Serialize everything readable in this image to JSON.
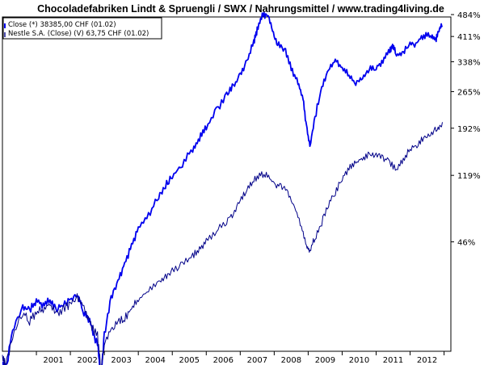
{
  "chart_data": {
    "type": "line",
    "title": "Chocoladefabriken Lindt & Spruengli / SWX / Nahrungsmittel / www.trading4living.de",
    "xlabel": "",
    "ylabel": "",
    "y_scale": "log",
    "y_tick_labels": [
      "484%",
      "411%",
      "338%",
      "265%",
      "192%",
      "119%",
      "46%"
    ],
    "y_tick_values": [
      484,
      411,
      338,
      265,
      192,
      119,
      46
    ],
    "x_tick_labels": [
      "2001",
      "2002",
      "2003",
      "2004",
      "2005",
      "2006",
      "2007",
      "2008",
      "2009",
      "2010",
      "2011",
      "2012"
    ],
    "xlim": [
      2000.0,
      2013.2
    ],
    "grid": false,
    "legend_position": "top-left",
    "series": [
      {
        "name": "Close (*) 38385,00 CHF (01.02)",
        "color": "#0000ee",
        "points": [
          [
            2000.0,
            -30
          ],
          [
            2000.1,
            -33
          ],
          [
            2000.3,
            -15
          ],
          [
            2000.6,
            -2
          ],
          [
            2000.8,
            -4
          ],
          [
            2001.0,
            2
          ],
          [
            2001.2,
            -1
          ],
          [
            2001.4,
            2
          ],
          [
            2001.6,
            -3
          ],
          [
            2001.8,
            0
          ],
          [
            2002.0,
            3
          ],
          [
            2002.2,
            5
          ],
          [
            2002.4,
            -5
          ],
          [
            2002.6,
            -12
          ],
          [
            2002.8,
            -22
          ],
          [
            2002.9,
            -36
          ],
          [
            2003.0,
            -18
          ],
          [
            2003.2,
            4
          ],
          [
            2003.4,
            14
          ],
          [
            2003.6,
            28
          ],
          [
            2003.8,
            42
          ],
          [
            2004.0,
            58
          ],
          [
            2004.3,
            72
          ],
          [
            2004.6,
            92
          ],
          [
            2004.8,
            106
          ],
          [
            2005.0,
            118
          ],
          [
            2005.3,
            133
          ],
          [
            2005.6,
            158
          ],
          [
            2005.8,
            175
          ],
          [
            2006.0,
            193
          ],
          [
            2006.3,
            225
          ],
          [
            2006.6,
            258
          ],
          [
            2006.8,
            278
          ],
          [
            2007.0,
            305
          ],
          [
            2007.2,
            340
          ],
          [
            2007.4,
            395
          ],
          [
            2007.5,
            430
          ],
          [
            2007.65,
            478
          ],
          [
            2007.8,
            486
          ],
          [
            2007.95,
            430
          ],
          [
            2008.1,
            388
          ],
          [
            2008.3,
            375
          ],
          [
            2008.5,
            320
          ],
          [
            2008.7,
            288
          ],
          [
            2008.85,
            250
          ],
          [
            2008.95,
            193
          ],
          [
            2009.05,
            160
          ],
          [
            2009.2,
            210
          ],
          [
            2009.4,
            275
          ],
          [
            2009.6,
            315
          ],
          [
            2009.8,
            342
          ],
          [
            2010.0,
            322
          ],
          [
            2010.2,
            305
          ],
          [
            2010.4,
            283
          ],
          [
            2010.6,
            300
          ],
          [
            2010.8,
            318
          ],
          [
            2011.0,
            322
          ],
          [
            2011.2,
            342
          ],
          [
            2011.4,
            370
          ],
          [
            2011.5,
            382
          ],
          [
            2011.6,
            352
          ],
          [
            2011.8,
            365
          ],
          [
            2012.0,
            385
          ],
          [
            2012.2,
            392
          ],
          [
            2012.4,
            415
          ],
          [
            2012.6,
            412
          ],
          [
            2012.75,
            400
          ],
          [
            2012.85,
            435
          ],
          [
            2012.95,
            445
          ]
        ]
      },
      {
        "name": "Nestle S.A. (Close) (V) 63,75 CHF (01.02)",
        "color": "#000088",
        "points": [
          [
            2000.0,
            -28
          ],
          [
            2000.1,
            -32
          ],
          [
            2000.3,
            -18
          ],
          [
            2000.6,
            -5
          ],
          [
            2000.8,
            -10
          ],
          [
            2001.0,
            -5
          ],
          [
            2001.2,
            -3
          ],
          [
            2001.4,
            0
          ],
          [
            2001.6,
            -6
          ],
          [
            2001.8,
            -3
          ],
          [
            2002.0,
            0
          ],
          [
            2002.2,
            4
          ],
          [
            2002.4,
            -2
          ],
          [
            2002.6,
            -12
          ],
          [
            2002.8,
            -18
          ],
          [
            2002.9,
            -33
          ],
          [
            2003.0,
            -22
          ],
          [
            2003.2,
            -14
          ],
          [
            2003.4,
            -10
          ],
          [
            2003.6,
            -8
          ],
          [
            2003.8,
            -3
          ],
          [
            2004.0,
            3
          ],
          [
            2004.3,
            8
          ],
          [
            2004.6,
            14
          ],
          [
            2004.8,
            18
          ],
          [
            2005.0,
            22
          ],
          [
            2005.3,
            28
          ],
          [
            2005.6,
            34
          ],
          [
            2005.8,
            40
          ],
          [
            2006.0,
            46
          ],
          [
            2006.3,
            56
          ],
          [
            2006.6,
            66
          ],
          [
            2006.8,
            74
          ],
          [
            2007.0,
            88
          ],
          [
            2007.2,
            102
          ],
          [
            2007.4,
            112
          ],
          [
            2007.6,
            122
          ],
          [
            2007.8,
            118
          ],
          [
            2008.0,
            108
          ],
          [
            2008.2,
            104
          ],
          [
            2008.4,
            98
          ],
          [
            2008.6,
            80
          ],
          [
            2008.8,
            60
          ],
          [
            2008.95,
            42
          ],
          [
            2009.05,
            38
          ],
          [
            2009.2,
            50
          ],
          [
            2009.4,
            64
          ],
          [
            2009.6,
            84
          ],
          [
            2009.8,
            96
          ],
          [
            2010.0,
            116
          ],
          [
            2010.2,
            128
          ],
          [
            2010.4,
            136
          ],
          [
            2010.6,
            144
          ],
          [
            2010.8,
            150
          ],
          [
            2011.0,
            146
          ],
          [
            2011.2,
            144
          ],
          [
            2011.4,
            138
          ],
          [
            2011.6,
            126
          ],
          [
            2011.8,
            142
          ],
          [
            2012.0,
            156
          ],
          [
            2012.2,
            164
          ],
          [
            2012.4,
            176
          ],
          [
            2012.6,
            184
          ],
          [
            2012.8,
            190
          ],
          [
            2012.95,
            203
          ]
        ]
      }
    ]
  }
}
